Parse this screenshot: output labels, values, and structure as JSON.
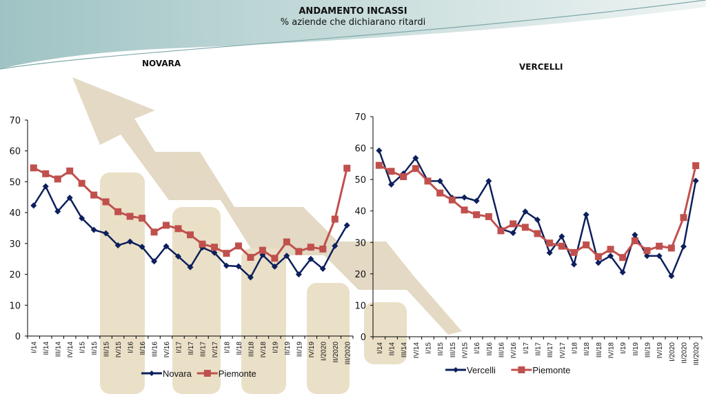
{
  "header": {
    "title": "ANDAMENTO INCASSI",
    "subtitle": "% aziende che dichiarano ritardi"
  },
  "colors": {
    "series_primary": "#0d1f5c",
    "series_piemonte": "#c0504d"
  },
  "chart_data": [
    {
      "type": "line",
      "title": "NOVARA",
      "xlabel": "",
      "ylabel": "",
      "ylim": [
        0,
        70
      ],
      "yticks": [
        "0",
        "10",
        "20",
        "30",
        "40",
        "50",
        "60",
        "70"
      ],
      "legend": "bottom",
      "categories": [
        "I/14",
        "II/14",
        "III/14",
        "IV/14",
        "I/15",
        "II/15",
        "III/15",
        "IV/15",
        "I/16",
        "II/16",
        "III/16",
        "IV/16",
        "I/17",
        "II/17",
        "III/17",
        "IV/17",
        "I/18",
        "II/18",
        "III/18",
        "IV/18",
        "I/19",
        "II/19",
        "III/19",
        "IV/19",
        "I/2020",
        "II/2020",
        "III/2020"
      ],
      "series": [
        {
          "name": "Novara",
          "values": [
            42.3,
            48.5,
            40.4,
            44.8,
            38.2,
            34.4,
            33.3,
            29.4,
            30.6,
            28.9,
            24.2,
            29.1,
            25.8,
            22.3,
            28.7,
            27.0,
            22.8,
            22.6,
            19.0,
            26.3,
            22.5,
            26.0,
            20.0,
            25.0,
            21.8,
            29.2,
            35.9
          ]
        },
        {
          "name": "Piemonte",
          "values": [
            54.5,
            52.6,
            50.9,
            53.5,
            49.5,
            45.7,
            43.5,
            40.3,
            38.8,
            38.2,
            33.7,
            35.9,
            34.8,
            32.8,
            29.8,
            28.8,
            26.8,
            29.2,
            25.5,
            27.8,
            25.2,
            30.5,
            27.4,
            28.8,
            28.2,
            37.9,
            54.4
          ]
        }
      ]
    },
    {
      "type": "line",
      "title": "VERCELLI",
      "xlabel": "",
      "ylabel": "",
      "ylim": [
        0,
        70
      ],
      "yticks": [
        "0",
        "10",
        "20",
        "30",
        "40",
        "50",
        "60",
        "70"
      ],
      "legend": "bottom",
      "categories": [
        "I/14",
        "II/14",
        "III/14",
        "IV/14",
        "I/15",
        "II/15",
        "III/15",
        "IV/15",
        "I/16",
        "II/16",
        "III/16",
        "IV/16",
        "I/17",
        "II/17",
        "III/17",
        "IV/17",
        "I/18",
        "II/18",
        "III/18",
        "IV/18",
        "I/19",
        "II/19",
        "III/19",
        "IV/19",
        "I/2020",
        "II/2020",
        "III/2020"
      ],
      "series": [
        {
          "name": "Vercelli",
          "values": [
            59.2,
            48.4,
            51.9,
            56.8,
            49.5,
            49.5,
            44.2,
            44.3,
            43.2,
            49.5,
            34.3,
            33.0,
            39.8,
            37.2,
            26.7,
            31.9,
            23.0,
            38.8,
            23.5,
            25.7,
            20.5,
            32.4,
            25.7,
            25.7,
            19.3,
            28.7,
            49.6
          ]
        },
        {
          "name": "Piemonte",
          "values": [
            54.5,
            52.6,
            50.9,
            53.5,
            49.5,
            45.7,
            43.5,
            40.3,
            38.8,
            38.2,
            33.7,
            35.9,
            34.8,
            32.8,
            29.8,
            28.8,
            26.8,
            29.2,
            25.5,
            27.8,
            25.2,
            30.5,
            27.4,
            28.8,
            28.2,
            37.9,
            54.4
          ]
        }
      ]
    }
  ]
}
